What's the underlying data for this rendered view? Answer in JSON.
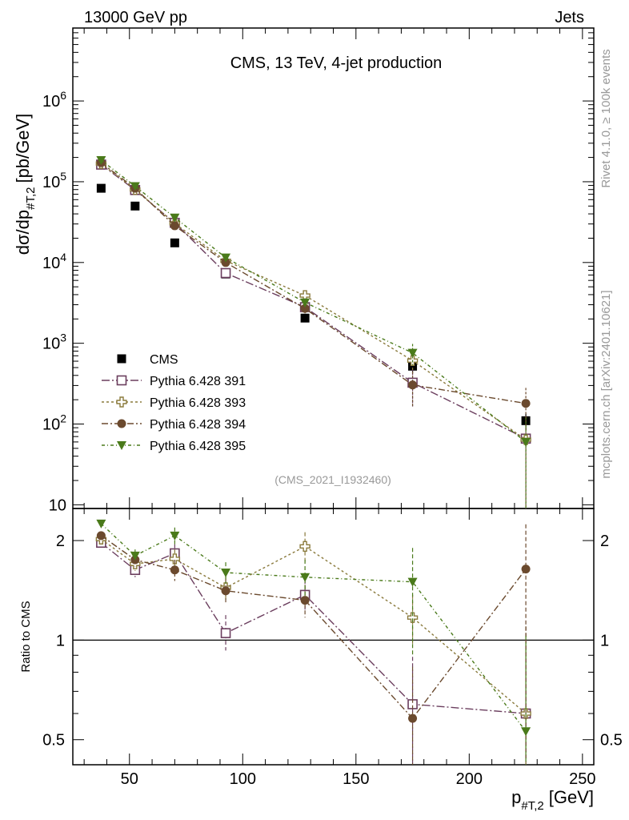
{
  "header": {
    "left": "13000 GeV pp",
    "right": "Jets"
  },
  "side_labels": {
    "rivet": "Rivet 4.1.0, ≥ 100k events",
    "mcplots": "mcplots.cern.ch [arXiv:2401.10621]"
  },
  "colors": {
    "cms": "#000000",
    "p391": "#6b3e5e",
    "p393": "#8a7a3c",
    "p394": "#6b4a2e",
    "p395": "#4a7a1a"
  },
  "chart_data": [
    {
      "type": "scatter",
      "panel": "main",
      "title": "CMS, 13 TeV, 4-jet production",
      "analysis_id": "(CMS_2021_I1932460)",
      "ylabel": "dσ/dp#T,2 [pb/GeV]",
      "ylabel_main": "dσ/dp",
      "ylabel_sub": "#T,2",
      "ylabel_unit": "[pb/GeV]",
      "yscale": "log",
      "ylim": [
        9,
        8000000
      ],
      "xlim": [
        25,
        255
      ],
      "ytick_labels": [
        {
          "value": 10,
          "base": "10",
          "exp": ""
        },
        {
          "value": 100,
          "base": "10",
          "exp": "2"
        },
        {
          "value": 1000,
          "base": "10",
          "exp": "3"
        },
        {
          "value": 10000,
          "base": "10",
          "exp": "4"
        },
        {
          "value": 100000,
          "base": "10",
          "exp": "5"
        },
        {
          "value": 1000000,
          "base": "10",
          "exp": "6"
        }
      ],
      "legend": [
        "CMS",
        "Pythia 6.428 391",
        "Pythia 6.428 393",
        "Pythia 6.428 394",
        "Pythia 6.428 395"
      ],
      "legend_position": "lower-left",
      "series": [
        {
          "name": "CMS",
          "key": "cms",
          "marker": "square-filled",
          "x": [
            37.5,
            52.5,
            70,
            92.5,
            127.5,
            175,
            225
          ],
          "values": [
            83000,
            50000,
            17500,
            7200,
            2050,
            520,
            110
          ],
          "err_up": [
            0,
            0,
            0,
            0,
            0,
            90,
            25
          ]
        },
        {
          "name": "Pythia 6.428 391",
          "key": "p391",
          "marker": "square-open",
          "x": [
            37.5,
            52.5,
            70,
            92.5,
            127.5,
            175,
            225
          ],
          "values": [
            163000,
            79000,
            31000,
            7400,
            2800,
            325,
            66
          ],
          "err_up": [
            10000,
            5000,
            2500,
            800,
            350,
            160,
            60
          ]
        },
        {
          "name": "Pythia 6.428 393",
          "key": "p393",
          "marker": "plus-open",
          "x": [
            37.5,
            52.5,
            70,
            92.5,
            127.5,
            175,
            225
          ],
          "values": [
            168000,
            80000,
            30500,
            10500,
            3900,
            610,
            64
          ],
          "err_up": [
            10000,
            5000,
            2500,
            900,
            450,
            180,
            60
          ]
        },
        {
          "name": "Pythia 6.428 394",
          "key": "p394",
          "marker": "circle-filled",
          "x": [
            37.5,
            52.5,
            70,
            92.5,
            127.5,
            175,
            225
          ],
          "values": [
            172000,
            83000,
            28500,
            10000,
            2700,
            305,
            180
          ],
          "err_up": [
            10000,
            5000,
            2500,
            900,
            350,
            140,
            100
          ]
        },
        {
          "name": "Pythia 6.428 395",
          "key": "p395",
          "marker": "triangle-down-filled",
          "x": [
            37.5,
            52.5,
            70,
            92.5,
            127.5,
            175,
            225
          ],
          "values": [
            185000,
            88000,
            36000,
            11500,
            3200,
            760,
            60
          ],
          "err_up": [
            10000,
            5000,
            2500,
            900,
            400,
            220,
            60
          ]
        }
      ]
    },
    {
      "type": "scatter",
      "panel": "ratio",
      "ylabel": "Ratio to CMS",
      "xlabel": "p#T,2 [GeV]",
      "xlabel_main": "p",
      "xlabel_sub": "#T,2",
      "xlabel_unit": "[GeV]",
      "yscale": "log",
      "ylim": [
        0.42,
        2.5
      ],
      "xlim": [
        25,
        255
      ],
      "xtick_labels": [
        "50",
        "100",
        "150",
        "200",
        "250"
      ],
      "xtick_values": [
        50,
        100,
        150,
        200,
        250
      ],
      "ytick_labels": [
        "0.5",
        "1",
        "2"
      ],
      "ytick_values": [
        0.5,
        1,
        2
      ],
      "series": [
        {
          "name": "Pythia 6.428 391",
          "key": "p391",
          "marker": "square-open",
          "x": [
            37.5,
            52.5,
            70,
            92.5,
            127.5,
            175,
            225
          ],
          "values": [
            1.97,
            1.63,
            1.83,
            1.05,
            1.37,
            0.64,
            0.6
          ],
          "err_up": [
            0.05,
            0.08,
            0.12,
            0.14,
            0.15,
            0.25,
            0.5
          ],
          "err_down": [
            0.05,
            0.08,
            0.12,
            0.12,
            0.15,
            0.3,
            0.6
          ]
        },
        {
          "name": "Pythia 6.428 393",
          "key": "p393",
          "marker": "plus-open",
          "x": [
            37.5,
            52.5,
            70,
            92.5,
            127.5,
            175,
            225
          ],
          "values": [
            2.02,
            1.7,
            1.76,
            1.44,
            1.92,
            1.17,
            0.6
          ],
          "err_up": [
            0.05,
            0.08,
            0.12,
            0.12,
            0.2,
            0.2,
            0.5
          ],
          "err_down": [
            0.05,
            0.08,
            0.12,
            0.12,
            0.2,
            0.2,
            0.6
          ]
        },
        {
          "name": "Pythia 6.428 394",
          "key": "p394",
          "marker": "circle-filled",
          "x": [
            37.5,
            52.5,
            70,
            92.5,
            127.5,
            175,
            225
          ],
          "values": [
            2.07,
            1.75,
            1.63,
            1.41,
            1.32,
            0.58,
            1.64
          ],
          "err_up": [
            0.05,
            0.08,
            0.12,
            0.12,
            0.15,
            0.25,
            0.6
          ],
          "err_down": [
            0.05,
            0.08,
            0.12,
            0.12,
            0.15,
            0.3,
            1.2
          ]
        },
        {
          "name": "Pythia 6.428 395",
          "key": "p395",
          "marker": "triangle-down-filled",
          "x": [
            37.5,
            52.5,
            70,
            92.5,
            127.5,
            175,
            225
          ],
          "values": [
            2.25,
            1.8,
            2.07,
            1.6,
            1.55,
            1.5,
            0.53
          ],
          "err_up": [
            0.05,
            0.08,
            0.12,
            0.12,
            0.2,
            0.4,
            0.5
          ],
          "err_down": [
            0.05,
            0.08,
            0.12,
            0.12,
            0.2,
            0.6,
            0.6
          ]
        }
      ]
    }
  ]
}
